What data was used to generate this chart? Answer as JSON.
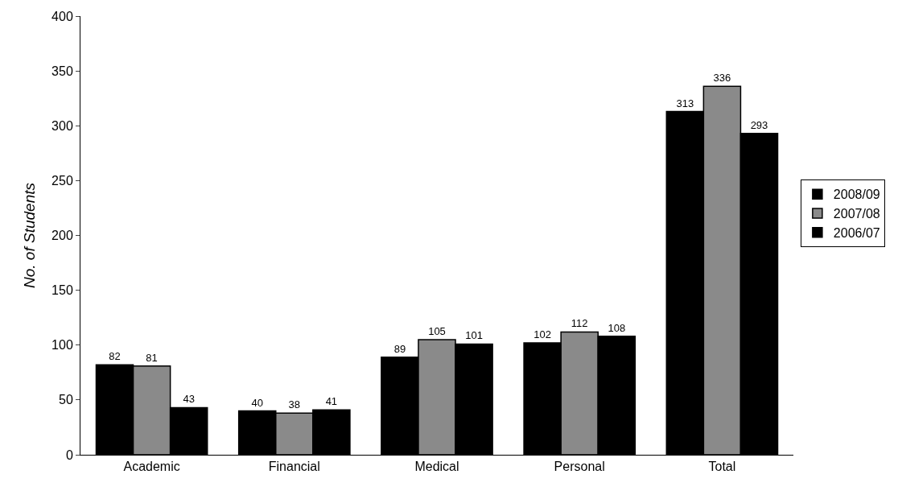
{
  "chart_data": {
    "type": "bar",
    "ylabel": "No. of Students",
    "categories": [
      "Academic",
      "Financial",
      "Medical",
      "Personal",
      "Total"
    ],
    "series": [
      {
        "name": "2008/09",
        "color": "#000000",
        "values": [
          82,
          40,
          89,
          102,
          313
        ]
      },
      {
        "name": "2007/08",
        "color": "#8a8a8a",
        "values": [
          81,
          38,
          105,
          112,
          336
        ]
      },
      {
        "name": "2006/07",
        "color": "#000000",
        "values": [
          43,
          41,
          101,
          108,
          293
        ]
      }
    ],
    "ylim": [
      0,
      400
    ],
    "yticks": [
      0,
      50,
      100,
      150,
      200,
      250,
      300,
      350,
      400
    ],
    "data_labels": true,
    "legend": "right"
  }
}
